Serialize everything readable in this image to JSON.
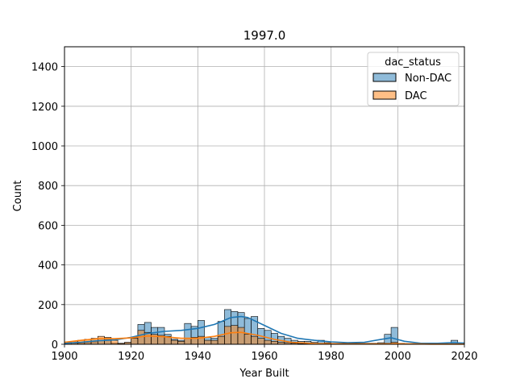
{
  "chart_data": {
    "type": "histogram",
    "title": "1997.0",
    "xlabel": "Year Built",
    "ylabel": "Count",
    "xlim": [
      1900,
      2020
    ],
    "ylim": [
      0,
      1500
    ],
    "xticks": [
      1900,
      1920,
      1940,
      1960,
      1980,
      2000,
      2020
    ],
    "yticks": [
      0,
      200,
      400,
      600,
      800,
      1000,
      1200,
      1400
    ],
    "grid": true,
    "bin_width": 2,
    "legend": {
      "title": "dac_status",
      "position": "top-right",
      "entries": [
        "Non-DAC",
        "DAC"
      ]
    },
    "series": [
      {
        "name": "Non-DAC",
        "color": "#1f77b4",
        "bins": [
          [
            1900,
            5
          ],
          [
            1902,
            5
          ],
          [
            1904,
            5
          ],
          [
            1906,
            8
          ],
          [
            1908,
            12
          ],
          [
            1910,
            20
          ],
          [
            1912,
            25
          ],
          [
            1914,
            5
          ],
          [
            1916,
            3
          ],
          [
            1918,
            8
          ],
          [
            1920,
            30
          ],
          [
            1922,
            100
          ],
          [
            1924,
            110
          ],
          [
            1926,
            85
          ],
          [
            1928,
            85
          ],
          [
            1930,
            50
          ],
          [
            1932,
            25
          ],
          [
            1934,
            20
          ],
          [
            1936,
            105
          ],
          [
            1938,
            90
          ],
          [
            1940,
            120
          ],
          [
            1942,
            35
          ],
          [
            1944,
            30
          ],
          [
            1946,
            115
          ],
          [
            1948,
            175
          ],
          [
            1950,
            165
          ],
          [
            1952,
            160
          ],
          [
            1954,
            130
          ],
          [
            1956,
            140
          ],
          [
            1958,
            80
          ],
          [
            1960,
            70
          ],
          [
            1962,
            55
          ],
          [
            1964,
            40
          ],
          [
            1966,
            30
          ],
          [
            1968,
            20
          ],
          [
            1970,
            15
          ],
          [
            1972,
            15
          ],
          [
            1974,
            10
          ],
          [
            1976,
            20
          ],
          [
            1978,
            8
          ],
          [
            1980,
            5
          ],
          [
            1982,
            5
          ],
          [
            1984,
            5
          ],
          [
            1986,
            5
          ],
          [
            1988,
            5
          ],
          [
            1990,
            5
          ],
          [
            1992,
            5
          ],
          [
            1994,
            8
          ],
          [
            1996,
            50
          ],
          [
            1998,
            85
          ],
          [
            2000,
            5
          ],
          [
            2002,
            3
          ],
          [
            2004,
            3
          ],
          [
            2006,
            3
          ],
          [
            2008,
            3
          ],
          [
            2010,
            3
          ],
          [
            2012,
            3
          ],
          [
            2014,
            3
          ],
          [
            2016,
            20
          ],
          [
            2018,
            5
          ]
        ],
        "kde": [
          [
            1900,
            5
          ],
          [
            1905,
            10
          ],
          [
            1910,
            18
          ],
          [
            1915,
            22
          ],
          [
            1920,
            35
          ],
          [
            1925,
            55
          ],
          [
            1930,
            65
          ],
          [
            1935,
            70
          ],
          [
            1940,
            80
          ],
          [
            1945,
            100
          ],
          [
            1950,
            135
          ],
          [
            1953,
            140
          ],
          [
            1955,
            135
          ],
          [
            1960,
            95
          ],
          [
            1965,
            55
          ],
          [
            1970,
            30
          ],
          [
            1975,
            20
          ],
          [
            1980,
            12
          ],
          [
            1985,
            8
          ],
          [
            1990,
            10
          ],
          [
            1995,
            25
          ],
          [
            1998,
            33
          ],
          [
            2002,
            15
          ],
          [
            2007,
            5
          ],
          [
            2012,
            5
          ],
          [
            2016,
            8
          ],
          [
            2020,
            6
          ]
        ]
      },
      {
        "name": "DAC",
        "color": "#ff7f0e",
        "bins": [
          [
            1900,
            10
          ],
          [
            1902,
            15
          ],
          [
            1904,
            20
          ],
          [
            1906,
            25
          ],
          [
            1908,
            30
          ],
          [
            1910,
            40
          ],
          [
            1912,
            35
          ],
          [
            1914,
            20
          ],
          [
            1916,
            5
          ],
          [
            1918,
            10
          ],
          [
            1920,
            30
          ],
          [
            1922,
            70
          ],
          [
            1924,
            60
          ],
          [
            1926,
            50
          ],
          [
            1928,
            45
          ],
          [
            1930,
            40
          ],
          [
            1932,
            20
          ],
          [
            1934,
            15
          ],
          [
            1936,
            30
          ],
          [
            1938,
            35
          ],
          [
            1940,
            40
          ],
          [
            1942,
            20
          ],
          [
            1944,
            20
          ],
          [
            1946,
            40
          ],
          [
            1948,
            90
          ],
          [
            1950,
            95
          ],
          [
            1952,
            85
          ],
          [
            1954,
            50
          ],
          [
            1956,
            40
          ],
          [
            1958,
            30
          ],
          [
            1960,
            20
          ],
          [
            1962,
            15
          ],
          [
            1964,
            10
          ],
          [
            1966,
            8
          ],
          [
            1968,
            5
          ],
          [
            1970,
            3
          ],
          [
            1972,
            3
          ],
          [
            1974,
            2
          ],
          [
            1976,
            5
          ],
          [
            1978,
            2
          ],
          [
            1980,
            1
          ],
          [
            1982,
            1
          ],
          [
            1984,
            1
          ],
          [
            1986,
            1
          ],
          [
            1988,
            1
          ],
          [
            1990,
            1
          ],
          [
            1992,
            1
          ],
          [
            1994,
            1
          ],
          [
            1996,
            5
          ],
          [
            1998,
            10
          ],
          [
            2000,
            1
          ]
        ],
        "kde": [
          [
            1900,
            10
          ],
          [
            1905,
            20
          ],
          [
            1910,
            28
          ],
          [
            1915,
            28
          ],
          [
            1920,
            32
          ],
          [
            1925,
            42
          ],
          [
            1930,
            38
          ],
          [
            1935,
            30
          ],
          [
            1940,
            30
          ],
          [
            1945,
            40
          ],
          [
            1950,
            58
          ],
          [
            1953,
            60
          ],
          [
            1958,
            45
          ],
          [
            1963,
            25
          ],
          [
            1968,
            10
          ],
          [
            1975,
            4
          ],
          [
            1985,
            2
          ],
          [
            1995,
            2
          ],
          [
            2000,
            3
          ],
          [
            2010,
            1
          ],
          [
            2020,
            1
          ]
        ]
      }
    ]
  }
}
